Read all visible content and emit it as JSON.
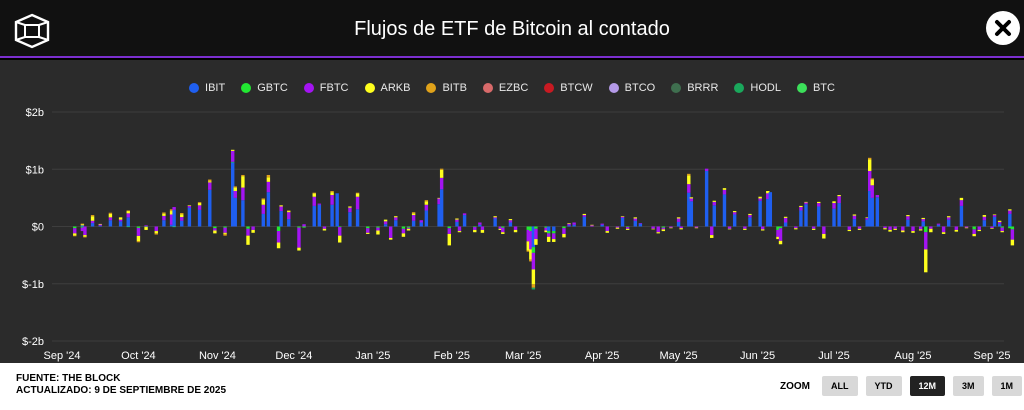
{
  "header": {
    "title": "Flujos de ETF de Bitcoin al contado"
  },
  "legend": [
    {
      "name": "IBIT",
      "color": "#1f5ff0"
    },
    {
      "name": "GBTC",
      "color": "#22e832"
    },
    {
      "name": "FBTC",
      "color": "#a414f2"
    },
    {
      "name": "ARKB",
      "color": "#ffff1e"
    },
    {
      "name": "BITB",
      "color": "#e0a21a"
    },
    {
      "name": "EZBC",
      "color": "#d86a6a"
    },
    {
      "name": "BTCW",
      "color": "#c81a22"
    },
    {
      "name": "BTCO",
      "color": "#b49ae8"
    },
    {
      "name": "BRRR",
      "color": "#3f6f4f"
    },
    {
      "name": "HODL",
      "color": "#1aa85c"
    },
    {
      "name": "BTC",
      "color": "#3ce05a"
    }
  ],
  "chart_data": {
    "type": "bar",
    "stacked": true,
    "ylim": [
      -2000,
      2000
    ],
    "y_ticks": [
      {
        "value": 2000,
        "label": "$2b"
      },
      {
        "value": 1000,
        "label": "$1b"
      },
      {
        "value": 0,
        "label": "$0"
      },
      {
        "value": -1000,
        "label": "$-1b"
      },
      {
        "value": -2000,
        "label": "$-2b"
      }
    ],
    "x_ticks": [
      {
        "date": "2024-09-01",
        "label": "Sep '24"
      },
      {
        "date": "2024-10-01",
        "label": "Oct '24"
      },
      {
        "date": "2024-11-01",
        "label": "Nov '24"
      },
      {
        "date": "2024-12-01",
        "label": "Dec '24"
      },
      {
        "date": "2025-01-01",
        "label": "Jan '25"
      },
      {
        "date": "2025-02-01",
        "label": "Feb '25"
      },
      {
        "date": "2025-03-01",
        "label": "Mar '25"
      },
      {
        "date": "2025-04-01",
        "label": "Apr '25"
      },
      {
        "date": "2025-05-01",
        "label": "May '25"
      },
      {
        "date": "2025-06-01",
        "label": "Jun '25"
      },
      {
        "date": "2025-07-01",
        "label": "Jul '25"
      },
      {
        "date": "2025-08-01",
        "label": "Aug '25"
      },
      {
        "date": "2025-09-01",
        "label": "Sep '25"
      }
    ],
    "series_order": [
      "IBIT",
      "GBTC",
      "FBTC",
      "ARKB",
      "BITB",
      "EZBC",
      "BTCW",
      "BTCO",
      "BRRR",
      "HODL",
      "BTC"
    ],
    "days": [
      {
        "d": "2024-09-06",
        "IBIT": 0,
        "GBTC": -30,
        "FBTC": -90,
        "ARKB": -40,
        "BITB": -10
      },
      {
        "d": "2024-09-09",
        "IBIT": 20,
        "GBTC": -20,
        "FBTC": -60,
        "ARKB": 20,
        "BITB": 10
      },
      {
        "d": "2024-09-10",
        "IBIT": 0,
        "GBTC": 0,
        "FBTC": -150,
        "ARKB": -30,
        "BITB": -10
      },
      {
        "d": "2024-09-13",
        "IBIT": 60,
        "FBTC": 40,
        "ARKB": 80,
        "BITB": 20
      },
      {
        "d": "2024-09-16",
        "IBIT": 15,
        "FBTC": 20,
        "ARKB": 10
      },
      {
        "d": "2024-09-20",
        "IBIT": 110,
        "FBTC": 50,
        "ARKB": 60,
        "BITB": 20
      },
      {
        "d": "2024-09-24",
        "IBIT": 90,
        "FBTC": 30,
        "ARKB": 40
      },
      {
        "d": "2024-09-27",
        "IBIT": 160,
        "FBTC": 70,
        "ARKB": 40,
        "GBTC": -10,
        "BITB": 10
      },
      {
        "d": "2024-10-01",
        "IBIT": 0,
        "FBTC": -140,
        "ARKB": -90,
        "GBTC": -25,
        "BITB": -20
      },
      {
        "d": "2024-10-04",
        "IBIT": 0,
        "FBTC": 20,
        "ARKB": -50,
        "GBTC": -10
      },
      {
        "d": "2024-10-08",
        "IBIT": 0,
        "FBTC": -80,
        "ARKB": -40,
        "BITB": -20
      },
      {
        "d": "2024-10-11",
        "IBIT": 110,
        "FBTC": 75,
        "ARKB": 40,
        "BITB": 20
      },
      {
        "d": "2024-10-14",
        "IBIT": 30,
        "FBTC": 180,
        "ARKB": 60,
        "BITB": 30
      },
      {
        "d": "2024-10-15",
        "IBIT": 290,
        "FBTC": 50,
        "ARKB": 0,
        "GBTC": -10
      },
      {
        "d": "2024-10-18",
        "IBIT": 100,
        "FBTC": 65,
        "ARKB": 50,
        "BITB": 20
      },
      {
        "d": "2024-10-21",
        "IBIT": 330,
        "FBTC": 30,
        "ARKB": 10
      },
      {
        "d": "2024-10-25",
        "IBIT": 290,
        "FBTC": 80,
        "ARKB": 40,
        "BITB": 15
      },
      {
        "d": "2024-10-29",
        "IBIT": 640,
        "FBTC": 130,
        "ARKB": 20,
        "BITB": 30
      },
      {
        "d": "2024-10-31",
        "IBIT": 0,
        "FBTC": -40,
        "ARKB": -50,
        "GBTC": -30
      },
      {
        "d": "2024-11-04",
        "IBIT": 0,
        "FBTC": -90,
        "ARKB": -20,
        "BITB": -30,
        "GBTC": -20
      },
      {
        "d": "2024-11-07",
        "IBIT": 1120,
        "FBTC": 190,
        "ARKB": 20,
        "BITB": 0,
        "GBTC": 10
      },
      {
        "d": "2024-11-08",
        "IBIT": 500,
        "FBTC": 120,
        "ARKB": 60,
        "BITB": 20
      },
      {
        "d": "2024-11-11",
        "IBIT": 460,
        "FBTC": 220,
        "ARKB": 200,
        "BITB": 20
      },
      {
        "d": "2024-11-13",
        "IBIT": 0,
        "FBTC": -120,
        "ARKB": -160,
        "GBTC": -40
      },
      {
        "d": "2024-11-15",
        "IBIT": 0,
        "FBTC": -60,
        "ARKB": -50
      },
      {
        "d": "2024-11-19",
        "IBIT": 220,
        "FBTC": 160,
        "ARKB": 90,
        "BITB": 20
      },
      {
        "d": "2024-11-21",
        "IBIT": 600,
        "FBTC": 180,
        "ARKB": 80,
        "BITB": 40
      },
      {
        "d": "2024-11-25",
        "IBIT": 0,
        "FBTC": -200,
        "ARKB": -100,
        "GBTC": -80
      },
      {
        "d": "2024-11-26",
        "IBIT": 270,
        "FBTC": 80,
        "ARKB": 20
      },
      {
        "d": "2024-11-29",
        "IBIT": 130,
        "FBTC": 120,
        "ARKB": 20,
        "BITB": 10
      },
      {
        "d": "2024-12-03",
        "IBIT": 0,
        "FBTC": -350,
        "ARKB": -50,
        "GBTC": -20
      },
      {
        "d": "2024-12-05",
        "IBIT": 0,
        "FBTC": 40,
        "ARKB": 0,
        "GBTC": -20
      },
      {
        "d": "2024-12-09",
        "IBIT": 360,
        "FBTC": 160,
        "ARKB": 60,
        "BITB": 10
      },
      {
        "d": "2024-12-11",
        "IBIT": 380,
        "FBTC": 20,
        "ARKB": 0
      },
      {
        "d": "2024-12-13",
        "IBIT": 0,
        "FBTC": -40,
        "ARKB": -30
      },
      {
        "d": "2024-12-16",
        "IBIT": 380,
        "FBTC": 170,
        "ARKB": 50,
        "BITB": 20
      },
      {
        "d": "2024-12-18",
        "IBIT": 580,
        "FBTC": 0,
        "ARKB": 0
      },
      {
        "d": "2024-12-19",
        "IBIT": 0,
        "FBTC": -150,
        "ARKB": -120,
        "GBTC": -10
      },
      {
        "d": "2024-12-23",
        "IBIT": 250,
        "FBTC": 80,
        "ARKB": 20
      },
      {
        "d": "2024-12-26",
        "IBIT": 300,
        "FBTC": 220,
        "ARKB": 60,
        "BITB": 10
      },
      {
        "d": "2024-12-30",
        "IBIT": 0,
        "FBTC": -80,
        "ARKB": -20,
        "GBTC": -30
      },
      {
        "d": "2025-01-03",
        "IBIT": 0,
        "FBTC": -50,
        "ARKB": -70,
        "GBTC": -20
      },
      {
        "d": "2025-01-06",
        "IBIT": 40,
        "FBTC": 50,
        "ARKB": 30
      },
      {
        "d": "2025-01-08",
        "IBIT": 0,
        "FBTC": -200,
        "ARKB": -30
      },
      {
        "d": "2025-01-10",
        "IBIT": 110,
        "FBTC": 50,
        "ARKB": 20
      },
      {
        "d": "2025-01-13",
        "IBIT": 0,
        "FBTC": -80,
        "ARKB": -60,
        "GBTC": -40
      },
      {
        "d": "2025-01-15",
        "IBIT": 0,
        "FBTC": -20,
        "ARKB": -30,
        "GBTC": -20
      },
      {
        "d": "2025-01-17",
        "IBIT": 100,
        "FBTC": 100,
        "ARKB": 30,
        "BITB": 20
      },
      {
        "d": "2025-01-20",
        "IBIT": 70,
        "FBTC": 40
      },
      {
        "d": "2025-01-22",
        "IBIT": 280,
        "FBTC": 100,
        "ARKB": 60,
        "BITB": 20
      },
      {
        "d": "2025-01-27",
        "IBIT": 390,
        "FBTC": 100,
        "ARKB": 10
      },
      {
        "d": "2025-01-28",
        "IBIT": 650,
        "FBTC": 200,
        "ARKB": 140,
        "BITB": 20
      },
      {
        "d": "2025-01-31",
        "IBIT": 0,
        "FBTC": -100,
        "ARKB": -200,
        "GBTC": -30
      },
      {
        "d": "2025-02-03",
        "IBIT": 80,
        "FBTC": 40,
        "ARKB": 20
      },
      {
        "d": "2025-02-04",
        "IBIT": 0,
        "FBTC": -80,
        "ARKB": -20
      },
      {
        "d": "2025-02-06",
        "IBIT": 200,
        "FBTC": 30,
        "ARKB": 0
      },
      {
        "d": "2025-02-10",
        "IBIT": 0,
        "FBTC": -50,
        "ARKB": -40,
        "GBTC": -10
      },
      {
        "d": "2025-02-12",
        "IBIT": 30,
        "FBTC": 40
      },
      {
        "d": "2025-02-13",
        "IBIT": 0,
        "FBTC": -60,
        "ARKB": -50
      },
      {
        "d": "2025-02-18",
        "IBIT": 140,
        "FBTC": 20,
        "ARKB": 20
      },
      {
        "d": "2025-02-20",
        "IBIT": 0,
        "FBTC": -40,
        "ARKB": -20
      },
      {
        "d": "2025-02-21",
        "IBIT": 0,
        "FBTC": -80,
        "ARKB": -30,
        "GBTC": -20
      },
      {
        "d": "2025-02-24",
        "IBIT": 70,
        "FBTC": 40,
        "ARKB": 20
      },
      {
        "d": "2025-02-26",
        "IBIT": 0,
        "FBTC": -60,
        "ARKB": -40
      },
      {
        "d": "2025-03-03",
        "IBIT": 0,
        "FBTC": -200,
        "ARKB": -160,
        "GBTC": -60,
        "BITB": -20
      },
      {
        "d": "2025-03-04",
        "IBIT": 0,
        "FBTC": -320,
        "ARKB": -180,
        "GBTC": -80,
        "BITB": -30
      },
      {
        "d": "2025-03-05",
        "IBIT": -360,
        "FBTC": -290,
        "ARKB": -260,
        "GBTC": -100,
        "BITB": -60,
        "HODL": -30
      },
      {
        "d": "2025-03-06",
        "IBIT": 0,
        "FBTC": -180,
        "ARKB": -100,
        "GBTC": -40
      },
      {
        "d": "2025-03-10",
        "IBIT": 0,
        "FBTC": -50,
        "ARKB": -30,
        "GBTC": -20
      },
      {
        "d": "2025-03-11",
        "IBIT": -80,
        "FBTC": -60,
        "ARKB": -90,
        "GBTC": -40
      },
      {
        "d": "2025-03-13",
        "IBIT": -80,
        "FBTC": -100,
        "ARKB": -50,
        "GBTC": -40
      },
      {
        "d": "2025-03-17",
        "IBIT": 0,
        "FBTC": -100,
        "ARKB": -60,
        "GBTC": -30
      },
      {
        "d": "2025-03-19",
        "IBIT": 20,
        "FBTC": 30,
        "ARKB": 10
      },
      {
        "d": "2025-03-21",
        "IBIT": 30,
        "FBTC": 40
      },
      {
        "d": "2025-03-25",
        "IBIT": 170,
        "FBTC": 30,
        "ARKB": 20
      },
      {
        "d": "2025-03-28",
        "IBIT": 0,
        "FBTC": 20,
        "ARKB": 10
      },
      {
        "d": "2025-04-01",
        "IBIT": 30,
        "FBTC": 20,
        "ARKB": 0
      },
      {
        "d": "2025-04-03",
        "IBIT": 0,
        "FBTC": -80,
        "ARKB": -30
      },
      {
        "d": "2025-04-07",
        "IBIT": 0,
        "FBTC": -20,
        "ARKB": -20
      },
      {
        "d": "2025-04-09",
        "IBIT": 150,
        "FBTC": 20,
        "ARKB": 10
      },
      {
        "d": "2025-04-11",
        "IBIT": 0,
        "FBTC": -30,
        "ARKB": -20,
        "GBTC": -10
      },
      {
        "d": "2025-04-14",
        "IBIT": 100,
        "FBTC": 40,
        "ARKB": 20
      },
      {
        "d": "2025-04-16",
        "IBIT": 50,
        "FBTC": 10
      },
      {
        "d": "2025-04-21",
        "IBIT": 0,
        "FBTC": -40,
        "ARKB": -10
      },
      {
        "d": "2025-04-23",
        "IBIT": 0,
        "FBTC": -100,
        "ARKB": -20
      },
      {
        "d": "2025-04-25",
        "IBIT": 0,
        "FBTC": -30,
        "ARKB": -30,
        "GBTC": -20
      },
      {
        "d": "2025-04-28",
        "IBIT": 0,
        "FBTC": -20,
        "ARKB": -10
      },
      {
        "d": "2025-05-01",
        "IBIT": 80,
        "FBTC": 60,
        "ARKB": 20
      },
      {
        "d": "2025-05-02",
        "IBIT": 0,
        "FBTC": -30,
        "ARKB": -20
      },
      {
        "d": "2025-05-05",
        "IBIT": 590,
        "FBTC": 150,
        "ARKB": 150,
        "BITB": 30
      },
      {
        "d": "2025-05-06",
        "IBIT": 440,
        "FBTC": 50,
        "ARKB": 20
      },
      {
        "d": "2025-05-08",
        "IBIT": 0,
        "FBTC": -20,
        "ARKB": -10
      },
      {
        "d": "2025-05-12",
        "IBIT": 970,
        "FBTC": 40,
        "ARKB": 0
      },
      {
        "d": "2025-05-14",
        "IBIT": 0,
        "FBTC": -150,
        "ARKB": -50
      },
      {
        "d": "2025-05-15",
        "IBIT": 370,
        "FBTC": 60,
        "ARKB": 20
      },
      {
        "d": "2025-05-19",
        "IBIT": 560,
        "FBTC": 80,
        "ARKB": 30
      },
      {
        "d": "2025-05-21",
        "IBIT": 0,
        "FBTC": -40,
        "ARKB": -10
      },
      {
        "d": "2025-05-23",
        "IBIT": 210,
        "FBTC": 40,
        "ARKB": 20
      },
      {
        "d": "2025-05-27",
        "IBIT": 0,
        "FBTC": -40,
        "ARKB": -20
      },
      {
        "d": "2025-05-29",
        "IBIT": 160,
        "FBTC": 40,
        "ARKB": 20
      },
      {
        "d": "2025-06-02",
        "IBIT": 450,
        "FBTC": 40,
        "ARKB": 30
      },
      {
        "d": "2025-06-03",
        "IBIT": 0,
        "FBTC": -50,
        "ARKB": -20
      },
      {
        "d": "2025-06-05",
        "IBIT": 480,
        "FBTC": 100,
        "ARKB": 40
      },
      {
        "d": "2025-06-06",
        "IBIT": 600,
        "FBTC": 0,
        "ARKB": 0
      },
      {
        "d": "2025-06-09",
        "IBIT": 0,
        "FBTC": -120,
        "ARKB": -40,
        "GBTC": -60
      },
      {
        "d": "2025-06-10",
        "IBIT": 0,
        "FBTC": -220,
        "ARKB": -60,
        "GBTC": -30
      },
      {
        "d": "2025-06-12",
        "IBIT": 70,
        "FBTC": 80,
        "ARKB": 20
      },
      {
        "d": "2025-06-16",
        "IBIT": 0,
        "FBTC": -30,
        "ARKB": -20
      },
      {
        "d": "2025-06-18",
        "IBIT": 280,
        "FBTC": 60,
        "ARKB": 20
      },
      {
        "d": "2025-06-20",
        "IBIT": 390,
        "FBTC": 30,
        "ARKB": 10
      },
      {
        "d": "2025-06-23",
        "IBIT": 0,
        "FBTC": -40,
        "ARKB": -20
      },
      {
        "d": "2025-06-25",
        "IBIT": 350,
        "FBTC": 60,
        "ARKB": 20
      },
      {
        "d": "2025-06-27",
        "IBIT": 0,
        "FBTC": -130,
        "ARKB": -80
      },
      {
        "d": "2025-07-01",
        "IBIT": 310,
        "FBTC": 100,
        "ARKB": 30
      },
      {
        "d": "2025-07-03",
        "IBIT": 410,
        "FBTC": 120,
        "ARKB": 20
      },
      {
        "d": "2025-07-07",
        "IBIT": 0,
        "FBTC": -60,
        "ARKB": -20
      },
      {
        "d": "2025-07-09",
        "IBIT": 130,
        "FBTC": 60,
        "ARKB": 20
      },
      {
        "d": "2025-07-11",
        "IBIT": 0,
        "FBTC": -40,
        "ARKB": -20
      },
      {
        "d": "2025-07-14",
        "IBIT": 120,
        "FBTC": 30,
        "ARKB": 10
      },
      {
        "d": "2025-07-15",
        "IBIT": 620,
        "FBTC": 350,
        "ARKB": 200,
        "BITB": 30
      },
      {
        "d": "2025-07-16",
        "IBIT": 500,
        "FBTC": 220,
        "ARKB": 100,
        "BITB": 20
      },
      {
        "d": "2025-07-18",
        "IBIT": 510,
        "FBTC": 40
      },
      {
        "d": "2025-07-21",
        "IBIT": 0,
        "FBTC": -30,
        "ARKB": -20
      },
      {
        "d": "2025-07-23",
        "IBIT": 0,
        "FBTC": -60,
        "ARKB": -30
      },
      {
        "d": "2025-07-25",
        "IBIT": 0,
        "FBTC": -40,
        "ARKB": -20
      },
      {
        "d": "2025-07-28",
        "IBIT": 0,
        "FBTC": -70,
        "ARKB": -30
      },
      {
        "d": "2025-07-30",
        "IBIT": 120,
        "FBTC": 60,
        "ARKB": 20
      },
      {
        "d": "2025-08-01",
        "IBIT": 0,
        "FBTC": -80,
        "ARKB": -30
      },
      {
        "d": "2025-08-04",
        "IBIT": 0,
        "FBTC": -50,
        "ARKB": -20
      },
      {
        "d": "2025-08-05",
        "IBIT": 90,
        "FBTC": 40,
        "ARKB": 20
      },
      {
        "d": "2025-08-06",
        "IBIT": 0,
        "FBTC": -300,
        "ARKB": -400,
        "GBTC": -100
      },
      {
        "d": "2025-08-08",
        "IBIT": 0,
        "FBTC": -40,
        "ARKB": -60
      },
      {
        "d": "2025-08-11",
        "IBIT": 30,
        "FBTC": 20
      },
      {
        "d": "2025-08-13",
        "IBIT": 0,
        "FBTC": -100,
        "ARKB": -30
      },
      {
        "d": "2025-08-15",
        "IBIT": 120,
        "FBTC": 40,
        "ARKB": 20
      },
      {
        "d": "2025-08-18",
        "IBIT": 0,
        "FBTC": -60,
        "ARKB": -30
      },
      {
        "d": "2025-08-20",
        "IBIT": 360,
        "FBTC": 100,
        "ARKB": 40
      },
      {
        "d": "2025-08-22",
        "IBIT": 0,
        "FBTC": -20,
        "ARKB": -10
      },
      {
        "d": "2025-08-25",
        "IBIT": 0,
        "FBTC": -80,
        "ARKB": -40,
        "GBTC": -50
      },
      {
        "d": "2025-08-27",
        "IBIT": 0,
        "FBTC": -60,
        "ARKB": -20
      },
      {
        "d": "2025-08-29",
        "IBIT": 110,
        "FBTC": 60,
        "ARKB": 30
      },
      {
        "d": "2025-09-01",
        "IBIT": 0,
        "FBTC": -30,
        "ARKB": -10
      },
      {
        "d": "2025-09-02",
        "IBIT": 170,
        "FBTC": 30,
        "ARKB": 10
      },
      {
        "d": "2025-09-04",
        "IBIT": 50,
        "FBTC": 30,
        "ARKB": 20
      },
      {
        "d": "2025-09-05",
        "IBIT": 0,
        "FBTC": -60,
        "ARKB": -20,
        "GBTC": -20
      },
      {
        "d": "2025-09-08",
        "IBIT": 220,
        "FBTC": 60,
        "ARKB": 20,
        "GBTC": -30
      },
      {
        "d": "2025-09-09",
        "IBIT": 0,
        "FBTC": -180,
        "ARKB": -100,
        "GBTC": -50
      }
    ]
  },
  "footer": {
    "source": "FUENTE: THE BLOCK",
    "updated": "ACTUALIZADO: 9 DE SEPTIEMBRE DE 2025"
  },
  "zoom": {
    "label": "ZOOM",
    "buttons": [
      {
        "label": "ALL",
        "active": false
      },
      {
        "label": "YTD",
        "active": false
      },
      {
        "label": "12M",
        "active": true
      },
      {
        "label": "3M",
        "active": false
      },
      {
        "label": "1M",
        "active": false
      }
    ]
  }
}
